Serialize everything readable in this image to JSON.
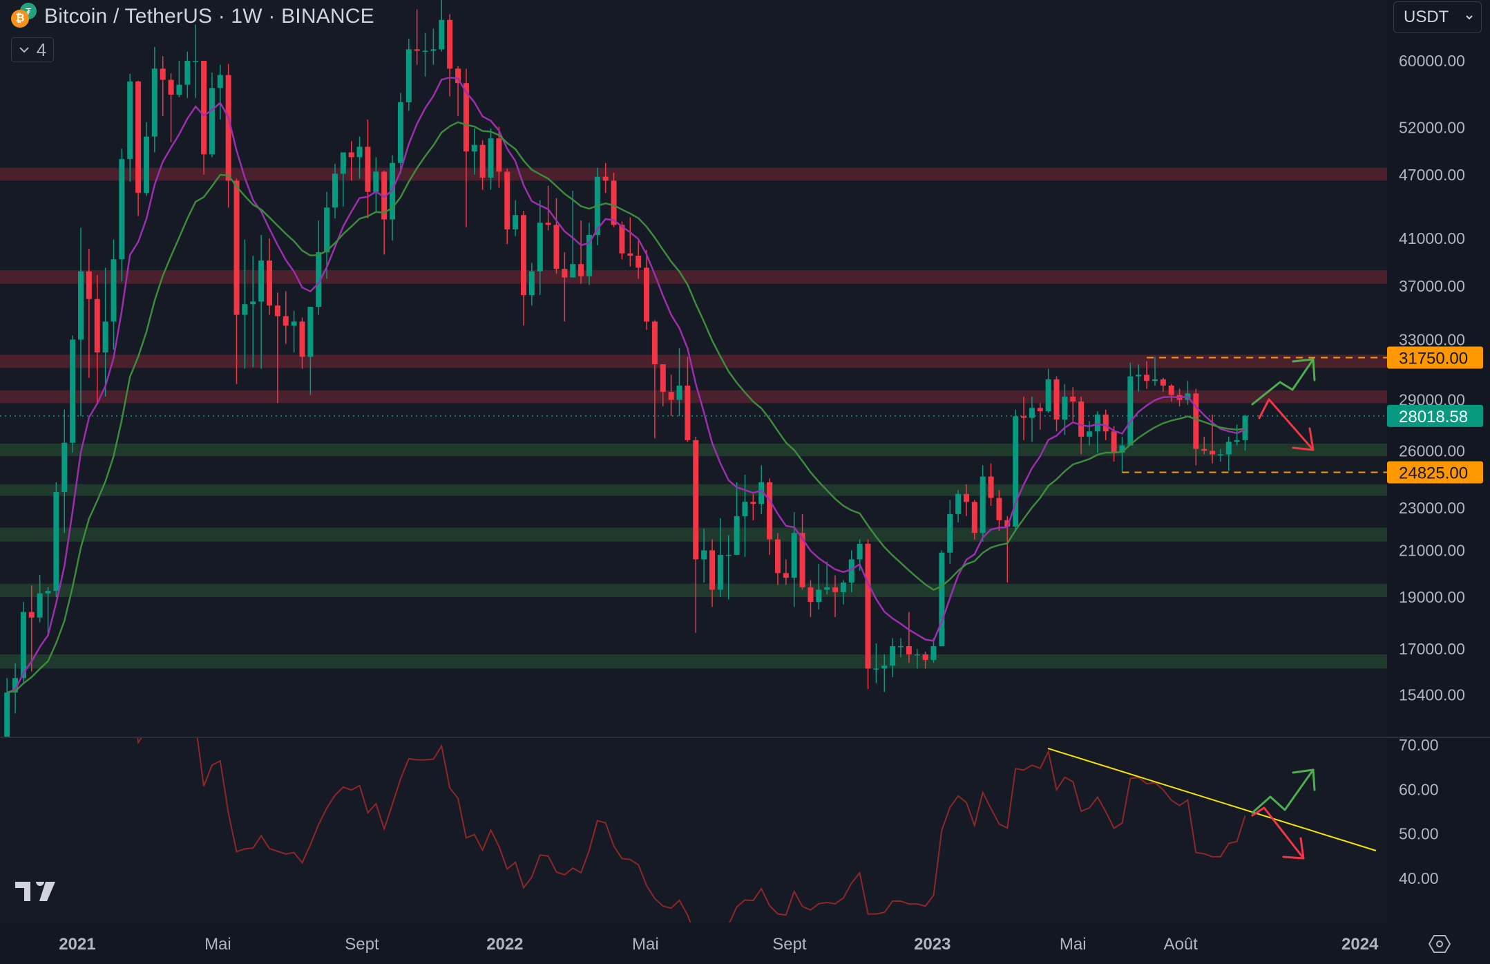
{
  "header": {
    "title": "Bitcoin / TetherUS · 1W · BINANCE",
    "base_icon": "bitcoin-icon",
    "quote_icon": "tether-icon",
    "indicators_toggle_count": "4"
  },
  "unit_select": {
    "value": "USDT"
  },
  "colors": {
    "background": "#161a25",
    "up": "#089981",
    "down": "#f23645",
    "ema_fast": "#9b2fae",
    "ema_slow": "#3d8b3d",
    "rsi": "#8e2727",
    "resistance_zone": "#4a202c",
    "support_zone": "#1f3a2d",
    "level_line": "#ff9800",
    "current_price": "#089981",
    "trendline": "#f5e400",
    "arrow_up": "#4caf50",
    "arrow_down": "#f23645"
  },
  "chart_data": {
    "type": "candlestick",
    "interval": "1W",
    "scale": "log",
    "columns": [
      "date",
      "open",
      "high",
      "low",
      "close"
    ],
    "candles": [
      [
        "2020-11-02",
        13800,
        15970,
        13500,
        15480
      ],
      [
        "2020-11-09",
        15480,
        16480,
        14800,
        15970
      ],
      [
        "2020-11-16",
        15970,
        18800,
        15800,
        18400
      ],
      [
        "2020-11-23",
        18400,
        19480,
        16200,
        18180
      ],
      [
        "2020-11-30",
        18180,
        19920,
        18000,
        19150
      ],
      [
        "2020-12-07",
        19150,
        19420,
        17600,
        19250
      ],
      [
        "2020-12-14",
        19250,
        24300,
        19000,
        23800
      ],
      [
        "2020-12-21",
        23800,
        28400,
        21800,
        26450
      ],
      [
        "2020-12-28",
        26450,
        33300,
        25900,
        33000
      ],
      [
        "2021-01-04",
        33000,
        41950,
        28000,
        38200
      ],
      [
        "2021-01-11",
        38200,
        40100,
        30400,
        36000
      ],
      [
        "2021-01-18",
        36000,
        37900,
        28800,
        32100
      ],
      [
        "2021-01-25",
        32100,
        38500,
        29200,
        34300
      ],
      [
        "2021-02-01",
        34300,
        40900,
        32300,
        39200
      ],
      [
        "2021-02-08",
        39200,
        49700,
        37400,
        48600
      ],
      [
        "2021-02-15",
        48600,
        58350,
        46300,
        57400
      ],
      [
        "2021-02-22",
        57400,
        57500,
        43000,
        45200
      ],
      [
        "2021-03-01",
        45200,
        52600,
        44900,
        51000
      ],
      [
        "2021-03-08",
        51000,
        61800,
        49300,
        59000
      ],
      [
        "2021-03-15",
        59000,
        60600,
        53300,
        57600
      ],
      [
        "2021-03-22",
        57600,
        58400,
        50400,
        55800
      ],
      [
        "2021-03-29",
        55800,
        60000,
        55500,
        57000
      ],
      [
        "2021-04-05",
        57000,
        61200,
        55400,
        60000
      ],
      [
        "2021-04-12",
        60000,
        64850,
        55400,
        60000
      ],
      [
        "2021-04-19",
        60000,
        60000,
        47000,
        49100
      ],
      [
        "2021-04-26",
        49100,
        58500,
        48800,
        56600
      ],
      [
        "2021-05-03",
        56600,
        59500,
        52900,
        58200
      ],
      [
        "2021-05-10",
        58200,
        59600,
        43800,
        46400
      ],
      [
        "2021-05-17",
        46400,
        46600,
        30000,
        34800
      ],
      [
        "2021-05-24",
        34800,
        40900,
        31000,
        35600
      ],
      [
        "2021-05-31",
        35600,
        39500,
        31100,
        35800
      ],
      [
        "2021-06-07",
        35800,
        41300,
        31000,
        39100
      ],
      [
        "2021-06-14",
        39100,
        41000,
        34800,
        35500
      ],
      [
        "2021-06-21",
        35500,
        36500,
        28800,
        34700
      ],
      [
        "2021-06-28",
        34700,
        36600,
        32700,
        34000
      ],
      [
        "2021-07-05",
        34000,
        35100,
        32100,
        34300
      ],
      [
        "2021-07-12",
        34300,
        34600,
        31000,
        31800
      ],
      [
        "2021-07-19",
        31800,
        35400,
        29300,
        35400
      ],
      [
        "2021-07-26",
        35400,
        42600,
        34800,
        39800
      ],
      [
        "2021-08-02",
        39800,
        45300,
        37600,
        43800
      ],
      [
        "2021-08-09",
        43800,
        48100,
        42800,
        47100
      ],
      [
        "2021-08-16",
        47100,
        49000,
        43900,
        49300
      ],
      [
        "2021-08-23",
        49300,
        50500,
        46400,
        48800
      ],
      [
        "2021-08-30",
        48800,
        51000,
        46600,
        49900
      ],
      [
        "2021-09-06",
        49900,
        52900,
        42800,
        45300
      ],
      [
        "2021-09-13",
        45300,
        48800,
        43300,
        47300
      ],
      [
        "2021-09-20",
        47300,
        47400,
        39600,
        42700
      ],
      [
        "2021-09-27",
        42700,
        49000,
        40800,
        48200
      ],
      [
        "2021-10-04",
        48200,
        56000,
        47100,
        54900
      ],
      [
        "2021-10-11",
        54900,
        62900,
        53900,
        61500
      ],
      [
        "2021-10-18",
        61500,
        67000,
        59500,
        61300
      ],
      [
        "2021-10-25",
        61300,
        63700,
        58000,
        61300
      ],
      [
        "2021-11-01",
        61300,
        64300,
        59500,
        61500
      ],
      [
        "2021-11-08",
        61500,
        69000,
        61200,
        65500
      ],
      [
        "2021-11-15",
        65500,
        66300,
        55600,
        59000
      ],
      [
        "2021-11-22",
        59000,
        59300,
        53300,
        57200
      ],
      [
        "2021-11-29",
        57200,
        59000,
        42000,
        49400
      ],
      [
        "2021-12-06",
        49400,
        51900,
        47000,
        50100
      ],
      [
        "2021-12-13",
        50100,
        50600,
        45500,
        46700
      ],
      [
        "2021-12-20",
        46700,
        51900,
        45500,
        50800
      ],
      [
        "2021-12-27",
        50800,
        52100,
        45700,
        47300
      ],
      [
        "2022-01-03",
        47300,
        47600,
        40500,
        41800
      ],
      [
        "2022-01-10",
        41800,
        44500,
        41200,
        43100
      ],
      [
        "2022-01-17",
        43100,
        43500,
        34000,
        36300
      ],
      [
        "2022-01-24",
        36300,
        38900,
        35500,
        38200
      ],
      [
        "2022-01-31",
        38200,
        44500,
        36300,
        42400
      ],
      [
        "2022-02-07",
        42400,
        45900,
        41700,
        42200
      ],
      [
        "2022-02-14",
        42200,
        44700,
        38000,
        38400
      ],
      [
        "2022-02-21",
        38400,
        39800,
        34300,
        37700
      ],
      [
        "2022-02-28",
        37700,
        45400,
        37700,
        38800
      ],
      [
        "2022-03-07",
        38800,
        42600,
        37200,
        37800
      ],
      [
        "2022-03-14",
        37800,
        42400,
        37100,
        41300
      ],
      [
        "2022-03-21",
        41300,
        47700,
        40400,
        46800
      ],
      [
        "2022-03-28",
        46800,
        48200,
        45200,
        46400
      ],
      [
        "2022-04-04",
        46400,
        47200,
        42000,
        42200
      ],
      [
        "2022-04-11",
        42200,
        42500,
        39200,
        39700
      ],
      [
        "2022-04-18",
        39700,
        42900,
        38600,
        39500
      ],
      [
        "2022-04-25",
        39500,
        40800,
        37600,
        38500
      ],
      [
        "2022-05-02",
        38500,
        40000,
        33700,
        34300
      ],
      [
        "2022-05-09",
        34300,
        34400,
        26700,
        31300
      ],
      [
        "2022-05-16",
        31300,
        31300,
        28600,
        29500
      ],
      [
        "2022-05-23",
        29500,
        30600,
        28000,
        29000
      ],
      [
        "2022-05-30",
        29000,
        32400,
        28000,
        29900
      ],
      [
        "2022-06-06",
        29900,
        31800,
        26500,
        26600
      ],
      [
        "2022-06-13",
        26600,
        26800,
        17600,
        20600
      ],
      [
        "2022-06-20",
        20600,
        22000,
        19600,
        21000
      ],
      [
        "2022-06-27",
        21000,
        21500,
        18600,
        19300
      ],
      [
        "2022-07-04",
        19300,
        22500,
        19000,
        20800
      ],
      [
        "2022-07-11",
        20800,
        21700,
        18900,
        20800
      ],
      [
        "2022-07-18",
        20800,
        24300,
        20800,
        22600
      ],
      [
        "2022-07-25",
        22600,
        24700,
        20700,
        23300
      ],
      [
        "2022-08-01",
        23300,
        23700,
        22400,
        23200
      ],
      [
        "2022-08-08",
        23200,
        25200,
        22700,
        24300
      ],
      [
        "2022-08-15",
        24300,
        24500,
        20800,
        21500
      ],
      [
        "2022-08-22",
        21500,
        21800,
        19500,
        20000
      ],
      [
        "2022-08-29",
        20000,
        20600,
        19500,
        19800
      ],
      [
        "2022-09-05",
        19800,
        22800,
        18600,
        21800
      ],
      [
        "2022-09-12",
        21800,
        22700,
        19300,
        19400
      ],
      [
        "2022-09-19",
        19400,
        19700,
        18200,
        18800
      ],
      [
        "2022-09-26",
        18800,
        20400,
        18500,
        19300
      ],
      [
        "2022-10-03",
        19300,
        20500,
        19100,
        19400
      ],
      [
        "2022-10-10",
        19400,
        19900,
        18200,
        19200
      ],
      [
        "2022-10-17",
        19200,
        19700,
        18700,
        19600
      ],
      [
        "2022-10-24",
        19600,
        21000,
        19200,
        20600
      ],
      [
        "2022-10-31",
        20600,
        21500,
        20100,
        21300
      ],
      [
        "2022-11-07",
        21300,
        21500,
        15600,
        16300
      ],
      [
        "2022-11-14",
        16300,
        17200,
        15800,
        16300
      ],
      [
        "2022-11-21",
        16300,
        16800,
        15500,
        16400
      ],
      [
        "2022-11-28",
        16400,
        17400,
        16000,
        17100
      ],
      [
        "2022-12-05",
        17100,
        17400,
        16700,
        17100
      ],
      [
        "2022-12-12",
        17100,
        18400,
        16500,
        16800
      ],
      [
        "2022-12-19",
        16800,
        17000,
        16300,
        16800
      ],
      [
        "2022-12-26",
        16800,
        16900,
        16300,
        16600
      ],
      [
        "2023-01-02",
        16600,
        17400,
        16500,
        17100
      ],
      [
        "2023-01-09",
        17100,
        21000,
        17100,
        20900
      ],
      [
        "2023-01-16",
        20900,
        23400,
        20400,
        22700
      ],
      [
        "2023-01-23",
        22700,
        23900,
        22300,
        23700
      ],
      [
        "2023-01-30",
        23700,
        24200,
        22600,
        23300
      ],
      [
        "2023-02-06",
        23300,
        23400,
        21500,
        21800
      ],
      [
        "2023-02-13",
        21800,
        25200,
        21400,
        24600
      ],
      [
        "2023-02-20",
        24600,
        25300,
        23100,
        23500
      ],
      [
        "2023-02-27",
        23500,
        23900,
        21900,
        22400
      ],
      [
        "2023-03-06",
        22400,
        22600,
        19600,
        22100
      ],
      [
        "2023-03-13",
        22100,
        28400,
        21900,
        28000
      ],
      [
        "2023-03-20",
        28000,
        29200,
        26600,
        27900
      ],
      [
        "2023-03-27",
        27900,
        29200,
        26500,
        28500
      ],
      [
        "2023-04-03",
        28500,
        28800,
        27200,
        28300
      ],
      [
        "2023-04-10",
        28300,
        31000,
        28200,
        30300
      ],
      [
        "2023-04-17",
        30300,
        30500,
        27100,
        27800
      ],
      [
        "2023-04-24",
        27800,
        30000,
        26900,
        29200
      ],
      [
        "2023-05-01",
        29200,
        29800,
        27700,
        28900
      ],
      [
        "2023-05-08",
        28900,
        29200,
        25800,
        26800
      ],
      [
        "2023-05-15",
        26800,
        27700,
        26300,
        27100
      ],
      [
        "2023-05-22",
        27100,
        28300,
        25900,
        28100
      ],
      [
        "2023-05-29",
        28100,
        28400,
        26600,
        27100
      ],
      [
        "2023-06-05",
        27100,
        27400,
        25400,
        25900
      ],
      [
        "2023-06-12",
        25900,
        26800,
        24800,
        26300
      ],
      [
        "2023-06-19",
        26300,
        31400,
        26300,
        30500
      ],
      [
        "2023-06-26",
        30500,
        31300,
        29500,
        30600
      ],
      [
        "2023-07-03",
        30600,
        31500,
        29700,
        30200
      ],
      [
        "2023-07-10",
        30200,
        31800,
        29900,
        30300
      ],
      [
        "2023-07-17",
        30300,
        30400,
        29500,
        29900
      ],
      [
        "2023-07-24",
        29900,
        30000,
        28900,
        29300
      ],
      [
        "2023-07-31",
        29300,
        29700,
        28600,
        29000
      ],
      [
        "2023-08-07",
        29000,
        30200,
        28700,
        29400
      ],
      [
        "2023-08-14",
        29400,
        29700,
        25200,
        26100
      ],
      [
        "2023-08-21",
        26100,
        26800,
        25800,
        26000
      ],
      [
        "2023-08-28",
        26000,
        28100,
        25300,
        25800
      ],
      [
        "2023-09-04",
        25800,
        26100,
        25400,
        25800
      ],
      [
        "2023-09-11",
        25800,
        26800,
        24900,
        26500
      ],
      [
        "2023-09-18",
        26500,
        27500,
        26300,
        26600
      ],
      [
        "2023-09-25",
        26600,
        28100,
        26000,
        28018.58
      ]
    ],
    "moving_averages": [
      {
        "type": "EMA",
        "period": 9,
        "color_key": "ema_fast"
      },
      {
        "type": "EMA",
        "period": 21,
        "color_key": "ema_slow"
      }
    ],
    "resistance_zones": [
      [
        46400,
        47700
      ],
      [
        37200,
        38300
      ],
      [
        31050,
        31950
      ],
      [
        28800,
        29600
      ]
    ],
    "support_zones": [
      [
        25700,
        26400
      ],
      [
        23600,
        24200
      ],
      [
        21400,
        22050
      ],
      [
        19000,
        19550
      ],
      [
        16300,
        16800
      ]
    ],
    "price_axis": {
      "ticks": [
        "60000.00",
        "52000.00",
        "47000.00",
        "41000.00",
        "37000.00",
        "33000.00",
        "29000.00",
        "26000.00",
        "23000.00",
        "21000.00",
        "19000.00",
        "17000.00",
        "15400.00"
      ],
      "range": [
        15000,
        69000
      ]
    },
    "levels": [
      {
        "label": "31750.00",
        "value": 31750,
        "from": "2023-07-03"
      },
      {
        "label": "24825.00",
        "value": 24825,
        "from": "2023-06-12"
      }
    ],
    "current_price": {
      "label": "28018.58",
      "value": 28018.58
    },
    "time_axis": [
      {
        "label": "2021",
        "date": "2021-01-01",
        "year": true
      },
      {
        "label": "Mai",
        "date": "2021-05-01"
      },
      {
        "label": "Sept",
        "date": "2021-09-01"
      },
      {
        "label": "2022",
        "date": "2022-01-01",
        "year": true
      },
      {
        "label": "Mai",
        "date": "2022-05-01"
      },
      {
        "label": "Sept",
        "date": "2022-09-01"
      },
      {
        "label": "2023",
        "date": "2023-01-01",
        "year": true
      },
      {
        "label": "Mai",
        "date": "2023-05-01"
      },
      {
        "label": "Août",
        "date": "2023-08-01"
      },
      {
        "label": "2024",
        "date": "2024-01-01",
        "year": true
      }
    ],
    "rsi": {
      "period": 14,
      "ticks": [
        "70.00",
        "60.00",
        "50.00",
        "40.00"
      ],
      "visible_range": [
        36,
        72
      ]
    }
  }
}
